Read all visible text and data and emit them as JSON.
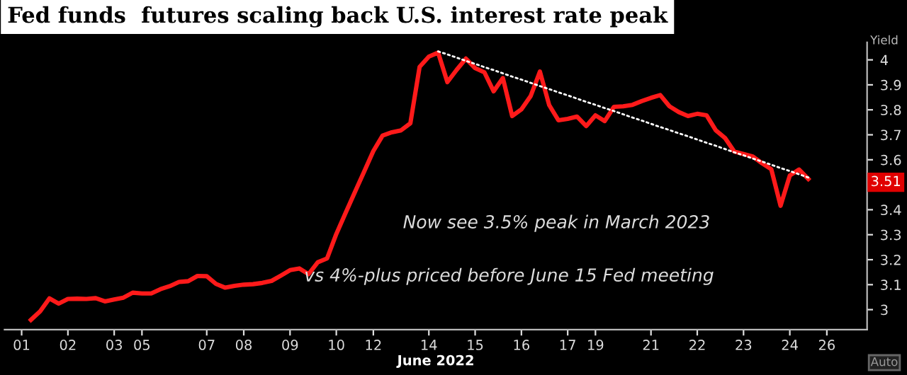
{
  "chart_data": {
    "type": "line",
    "title": "Fed funds  futures scaling back U.S. interest rate peak",
    "xlabel": "June 2022",
    "ylabel": "Yield",
    "categories": [
      "01",
      null,
      null,
      null,
      null,
      "02",
      null,
      null,
      null,
      null,
      "03",
      null,
      null,
      "05",
      null,
      null,
      null,
      null,
      null,
      null,
      "07",
      null,
      null,
      null,
      "08",
      null,
      null,
      null,
      null,
      "09",
      null,
      null,
      null,
      null,
      "10",
      null,
      null,
      null,
      "12",
      null,
      null,
      null,
      null,
      null,
      "14",
      null,
      null,
      null,
      null,
      "15",
      null,
      null,
      null,
      null,
      "16",
      null,
      null,
      null,
      null,
      "17",
      null,
      null,
      "19",
      null,
      null,
      null,
      null,
      null,
      "21",
      null,
      null,
      null,
      null,
      "22",
      null,
      null,
      null,
      null,
      "23",
      null,
      null,
      null,
      null,
      "24",
      null,
      null,
      null,
      "26"
    ],
    "ylim": [
      2.92,
      4.07
    ],
    "yticks": [
      3,
      3.1,
      3.2,
      3.3,
      3.4,
      3.6,
      3.7,
      3.8,
      3.9,
      4
    ],
    "grid": false,
    "legend": false,
    "series": [
      {
        "color": "#ff1a1a",
        "line_style": "solid",
        "values": [
          null,
          2.959,
          2.993,
          3.045,
          3.024,
          3.043,
          3.044,
          3.043,
          3.046,
          3.033,
          3.041,
          3.048,
          3.068,
          3.065,
          3.065,
          3.082,
          3.094,
          3.111,
          3.114,
          3.135,
          3.134,
          3.103,
          3.088,
          3.095,
          3.1,
          3.102,
          3.107,
          3.115,
          3.136,
          3.158,
          3.165,
          3.142,
          3.19,
          3.205,
          3.303,
          3.387,
          3.47,
          3.552,
          3.635,
          3.697,
          3.71,
          3.718,
          3.746,
          3.972,
          4.013,
          4.029,
          3.911,
          3.96,
          4.005,
          3.967,
          3.95,
          3.874,
          3.927,
          3.775,
          3.802,
          3.855,
          3.953,
          3.819,
          3.758,
          3.764,
          3.773,
          3.735,
          3.778,
          3.755,
          3.812,
          3.814,
          3.82,
          3.835,
          3.848,
          3.859,
          3.814,
          3.791,
          3.775,
          3.784,
          3.778,
          3.718,
          3.687,
          3.633,
          3.623,
          3.613,
          3.586,
          3.562,
          3.416,
          3.537,
          3.561,
          3.523,
          null,
          null
        ]
      },
      {
        "color": "#ffffff",
        "line_style": "dotted",
        "values": [
          null,
          null,
          null,
          null,
          null,
          null,
          null,
          null,
          null,
          null,
          null,
          null,
          null,
          null,
          null,
          null,
          null,
          null,
          null,
          null,
          null,
          null,
          null,
          null,
          null,
          null,
          null,
          null,
          null,
          null,
          null,
          null,
          null,
          null,
          null,
          null,
          null,
          null,
          null,
          null,
          null,
          null,
          null,
          null,
          null,
          4.034,
          4.022,
          4.009,
          3.996,
          3.984,
          3.971,
          3.959,
          3.946,
          3.933,
          3.921,
          3.908,
          3.895,
          3.883,
          3.87,
          3.858,
          3.845,
          3.832,
          3.82,
          3.807,
          3.795,
          3.782,
          3.769,
          3.757,
          3.744,
          3.731,
          3.719,
          3.706,
          3.694,
          3.681,
          3.668,
          3.656,
          3.643,
          3.63,
          3.618,
          3.605,
          3.593,
          3.58,
          3.567,
          3.555,
          3.542,
          3.529,
          null,
          null
        ]
      }
    ],
    "annotations": [
      "3.51",
      "Now see 3.5% peak in March 2023",
      "vs 4%-plus priced before June 15 Fed meeting",
      "Auto"
    ]
  }
}
